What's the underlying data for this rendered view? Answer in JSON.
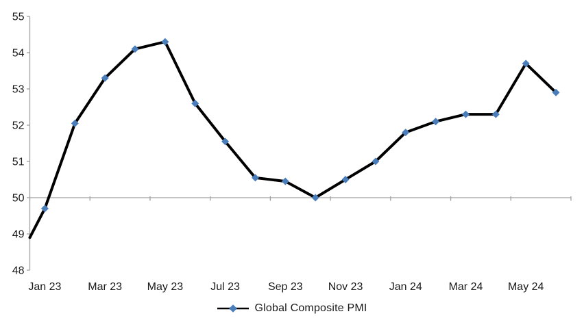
{
  "chart_data": {
    "type": "line",
    "title": "",
    "series": [
      {
        "name": "Global Composite PMI",
        "categories": [
          "Jan 23",
          "Feb 23",
          "Mar 23",
          "Apr 23",
          "May 23",
          "Jun 23",
          "Jul 23",
          "Aug 23",
          "Sep 23",
          "Oct 23",
          "Nov 23",
          "Dec 23",
          "Jan 24",
          "Feb 24",
          "Mar 24",
          "Apr 24",
          "May 24",
          "Jun 24"
        ],
        "values": [
          49.7,
          52.05,
          53.3,
          54.1,
          54.3,
          52.6,
          51.55,
          50.55,
          50.45,
          50.0,
          50.5,
          51.0,
          51.8,
          52.1,
          52.3,
          52.3,
          53.7,
          52.9
        ],
        "line_enters_left_edge_at": 48.9
      }
    ],
    "ylim": [
      48,
      55
    ],
    "y_tick_labels": [
      "55",
      "54",
      "53",
      "52",
      "51",
      "50",
      "49",
      "48"
    ],
    "x_tick_labels": [
      "Jan 23",
      "Mar 23",
      "May 23",
      "Jul 23",
      "Sep 23",
      "Nov 23",
      "Jan 24",
      "Mar 24",
      "May 24"
    ],
    "x_label_every": 2,
    "reference_line_value": 50,
    "grid": "off",
    "legend": {
      "label": "Global Composite PMI",
      "position": "bottom"
    }
  },
  "colors": {
    "line": "#000000",
    "marker": "#4a7ebb",
    "axis": "#a0a0a0",
    "text": "#1a1a1a",
    "background": "#ffffff"
  }
}
